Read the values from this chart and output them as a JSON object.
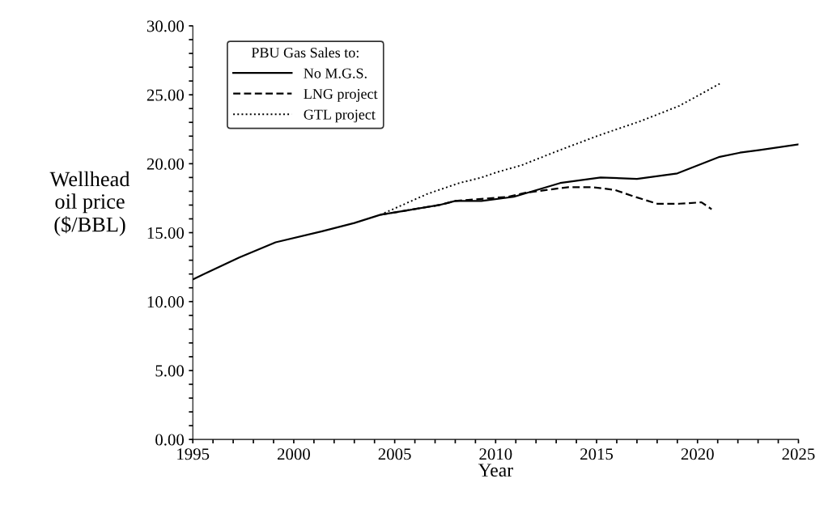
{
  "chart_data": {
    "type": "line",
    "xlabel": "Year",
    "ylabel": "Wellhead\noil price\n($/BBL)",
    "legend_title": "PBU Gas Sales to:",
    "legend": "top left",
    "grid": false,
    "marker": "none",
    "xlim": [
      1995,
      2025
    ],
    "xticks": [
      1995,
      {
        "value": 1996,
        "label": null
      },
      {
        "value": 1997,
        "label": null
      },
      {
        "value": 1998,
        "label": null
      },
      {
        "value": 1999,
        "label": null
      },
      2000,
      {
        "value": 2001,
        "label": null
      },
      {
        "value": 2002,
        "label": null
      },
      {
        "value": 2003,
        "label": null
      },
      {
        "value": 2004,
        "label": null
      },
      2005,
      {
        "value": 2006,
        "label": null
      },
      {
        "value": 2007,
        "label": null
      },
      {
        "value": 2008,
        "label": null
      },
      {
        "value": 2009,
        "label": null
      },
      2010,
      {
        "value": 2011,
        "label": null
      },
      {
        "value": 2012,
        "label": null
      },
      {
        "value": 2013,
        "label": null
      },
      {
        "value": 2014,
        "label": null
      },
      2015,
      {
        "value": 2016,
        "label": null
      },
      {
        "value": 2017,
        "label": null
      },
      {
        "value": 2018,
        "label": null
      },
      {
        "value": 2019,
        "label": null
      },
      2020,
      {
        "value": 2021,
        "label": null
      },
      {
        "value": 2022,
        "label": null
      },
      {
        "value": 2023,
        "label": null
      },
      {
        "value": 2024,
        "label": null
      },
      2025
    ],
    "ylim": [
      0,
      30
    ],
    "yticks": [
      {
        "value": 0,
        "label": "0.00"
      },
      {
        "value": 1,
        "label": null
      },
      {
        "value": 2,
        "label": null
      },
      {
        "value": 3,
        "label": null
      },
      {
        "value": 4,
        "label": null
      },
      {
        "value": 5,
        "label": "5.00"
      },
      {
        "value": 6,
        "label": null
      },
      {
        "value": 7,
        "label": null
      },
      {
        "value": 8,
        "label": null
      },
      {
        "value": 9,
        "label": null
      },
      {
        "value": 10,
        "label": "10.00"
      },
      {
        "value": 11,
        "label": null
      },
      {
        "value": 12,
        "label": null
      },
      {
        "value": 13,
        "label": null
      },
      {
        "value": 14,
        "label": null
      },
      {
        "value": 15,
        "label": "15.00"
      },
      {
        "value": 16,
        "label": null
      },
      {
        "value": 17,
        "label": null
      },
      {
        "value": 18,
        "label": null
      },
      {
        "value": 19,
        "label": null
      },
      {
        "value": 20,
        "label": "20.00"
      },
      {
        "value": 21,
        "label": null
      },
      {
        "value": 22,
        "label": null
      },
      {
        "value": 23,
        "label": null
      },
      {
        "value": 24,
        "label": null
      },
      {
        "value": 25,
        "label": "25.00"
      },
      {
        "value": 26,
        "label": null
      },
      {
        "value": 27,
        "label": null
      },
      {
        "value": 28,
        "label": null
      },
      {
        "value": 29,
        "label": null
      },
      {
        "value": 30,
        "label": "30.00"
      }
    ],
    "series": [
      {
        "name": "No M.G.S.",
        "color": "#000000",
        "line_style": "solid",
        "x": [
          1995,
          1995.7,
          1997.3,
          1999.1,
          2001.4,
          2003,
          2004.3,
          2007.2,
          2008,
          2009.3,
          2010.9,
          2013.2,
          2015.2,
          2017,
          2019,
          2021.1,
          2022.1,
          2023.1,
          2025
        ],
        "values": [
          11.6,
          12.1,
          13.2,
          14.3,
          15.1,
          15.7,
          16.3,
          17.0,
          17.3,
          17.3,
          17.6,
          18.6,
          19.0,
          18.9,
          19.3,
          20.5,
          20.8,
          21.0,
          21.4
        ]
      },
      {
        "name": "LNG project",
        "color": "#000000",
        "line_style": "dashed",
        "x": [
          2004.3,
          2007.2,
          2008,
          2010.6,
          2011.5,
          2013.6,
          2014.8,
          2015.9,
          2016.9,
          2018,
          2019.1,
          2020.2,
          2020.7
        ],
        "values": [
          16.3,
          17.0,
          17.3,
          17.6,
          17.9,
          18.3,
          18.3,
          18.1,
          17.6,
          17.1,
          17.1,
          17.2,
          16.7
        ]
      },
      {
        "name": "GTL project",
        "color": "#000000",
        "line_style": "dotted",
        "x": [
          2004.3,
          2006.6,
          2008.2,
          2009.3,
          2010.1,
          2011.3,
          2013.2,
          2015.2,
          2017.2,
          2019.1,
          2021.1
        ],
        "values": [
          16.3,
          17.8,
          18.6,
          19.0,
          19.4,
          19.9,
          21.0,
          22.1,
          23.1,
          24.2,
          25.8
        ]
      }
    ]
  }
}
